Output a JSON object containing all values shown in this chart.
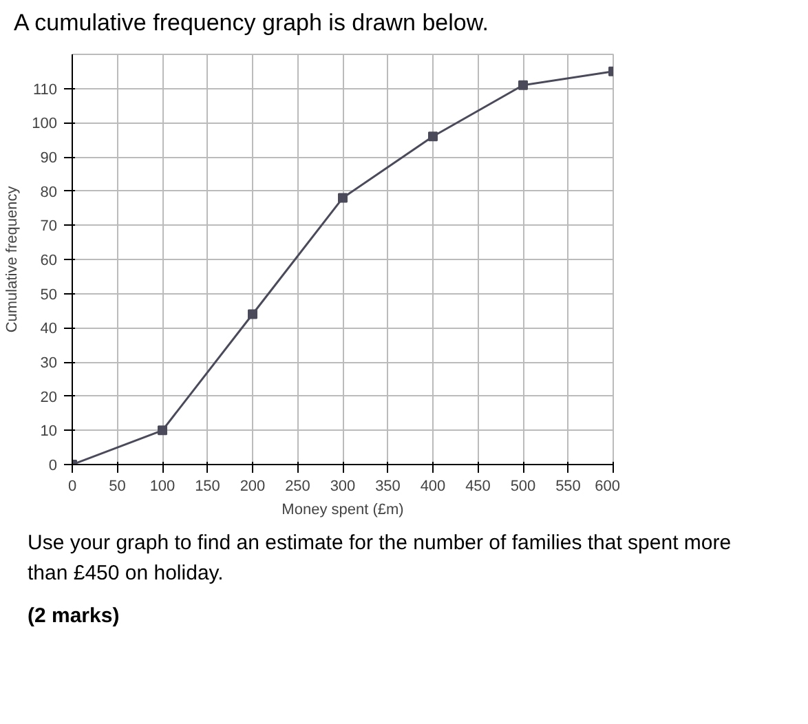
{
  "chart_data": {
    "type": "line",
    "title": "A cumulative frequency graph is drawn below.",
    "xlabel": "Money spent (£m)",
    "ylabel": "Cumulative frequency",
    "x": [
      0,
      100,
      200,
      300,
      400,
      500,
      600
    ],
    "series": [
      {
        "color": "#4a4a5a",
        "values": [
          0,
          10,
          44,
          78,
          96,
          111,
          115
        ]
      }
    ],
    "xlim": [
      0,
      600
    ],
    "ylim": [
      0,
      120
    ],
    "xticks": [
      0,
      50,
      100,
      150,
      200,
      250,
      300,
      350,
      400,
      450,
      500,
      550,
      600
    ],
    "yticks": [
      0,
      10,
      20,
      30,
      40,
      50,
      60,
      70,
      80,
      90,
      100,
      110
    ],
    "grid": true,
    "marker": "square",
    "line_style": "solid",
    "annotations": [
      "Use your graph to find an estimate for the number of families that spent more than £450 on holiday.",
      "(2 marks)"
    ]
  }
}
